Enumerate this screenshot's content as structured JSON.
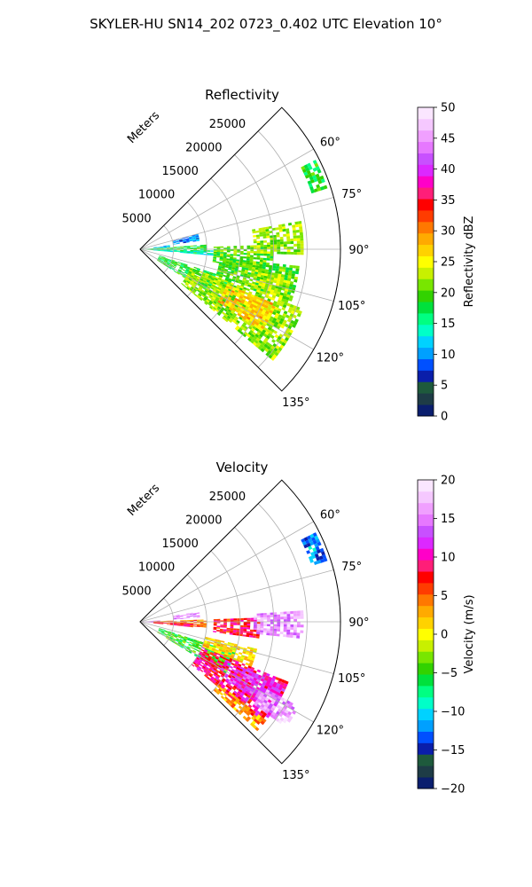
{
  "figure_title": "SKYLER-HU  SN14_202  0723_0.402 UTC Elevation 10°",
  "chart_data": [
    {
      "type": "heatmap",
      "projection": "polar-sector",
      "title": "Reflectivity",
      "radial_axis_label": "Meters",
      "radial_ticks": [
        5000,
        10000,
        15000,
        20000,
        25000
      ],
      "radial_tick_labels": [
        "5000",
        "10000",
        "15000",
        "20000",
        "25000"
      ],
      "rlim": [
        0,
        30000
      ],
      "theta_range_deg": [
        45,
        135
      ],
      "theta_zero": "north",
      "theta_direction": "clockwise",
      "theta_tick_labels": [
        "60°",
        "75°",
        "90°",
        "105°",
        "120°",
        "135°"
      ],
      "theta_ticks_deg": [
        60,
        75,
        90,
        105,
        120,
        135
      ],
      "grid": true,
      "colorbar": {
        "label": "Reflectivity dBZ",
        "min": 0,
        "max": 50,
        "ticks": [
          0,
          5,
          10,
          15,
          20,
          25,
          30,
          35,
          40,
          45,
          50
        ],
        "tick_labels": [
          "0",
          "5",
          "10",
          "15",
          "20",
          "25",
          "30",
          "35",
          "40",
          "45",
          "50"
        ],
        "colors": [
          "#0a1e6e",
          "#1e3c46",
          "#1e5a3c",
          "#0a1eaa",
          "#0050ff",
          "#00a0ff",
          "#00d2ff",
          "#00ffc8",
          "#00ff82",
          "#00e13c",
          "#32d200",
          "#78e600",
          "#c8f000",
          "#ffff00",
          "#ffd200",
          "#ffaa00",
          "#ff7800",
          "#ff3c00",
          "#ff0000",
          "#ff1e78",
          "#ff00c8",
          "#dc28ff",
          "#c850ff",
          "#e678ff",
          "#f0a0ff",
          "#f5c8ff",
          "#fae6ff"
        ]
      },
      "regions": [
        {
          "az": [
            86,
            94
          ],
          "r": [
            0,
            10000
          ],
          "value": 18
        },
        {
          "az": [
            82,
            87
          ],
          "r": [
            2000,
            4500
          ],
          "value": 12
        },
        {
          "az": [
            91,
            95
          ],
          "r": [
            2000,
            11000
          ],
          "value": 14
        },
        {
          "az": [
            75,
            82
          ],
          "r": [
            5000,
            9000
          ],
          "value": 10
        },
        {
          "az": [
            88,
            100
          ],
          "r": [
            11000,
            20000
          ],
          "value": 20
        },
        {
          "az": [
            80,
            92
          ],
          "r": [
            17000,
            24500
          ],
          "value": 22
        },
        {
          "az": [
            108,
            123
          ],
          "r": [
            3000,
            15000
          ],
          "value": 18
        },
        {
          "az": [
            110,
            130
          ],
          "r": [
            8000,
            26000
          ],
          "value": 22
        },
        {
          "az": [
            112,
            124
          ],
          "r": [
            14000,
            22000
          ],
          "value": 27
        },
        {
          "az": [
            96,
            110
          ],
          "r": [
            12000,
            24000
          ],
          "value": 20
        },
        {
          "az": [
            100,
            110
          ],
          "r": [
            17000,
            23000
          ],
          "value": 23
        },
        {
          "az": [
            63,
            72
          ],
          "r": [
            27000,
            29500
          ],
          "value": 18
        }
      ]
    },
    {
      "type": "heatmap",
      "projection": "polar-sector",
      "title": "Velocity",
      "radial_axis_label": "Meters",
      "radial_ticks": [
        5000,
        10000,
        15000,
        20000,
        25000
      ],
      "radial_tick_labels": [
        "5000",
        "10000",
        "15000",
        "20000",
        "25000"
      ],
      "rlim": [
        0,
        30000
      ],
      "theta_range_deg": [
        45,
        135
      ],
      "theta_zero": "north",
      "theta_direction": "clockwise",
      "theta_tick_labels": [
        "60°",
        "75°",
        "90°",
        "105°",
        "120°",
        "135°"
      ],
      "theta_ticks_deg": [
        60,
        75,
        90,
        105,
        120,
        135
      ],
      "grid": true,
      "colorbar": {
        "label": "Velocity (m/s)",
        "min": -20,
        "max": 20,
        "ticks": [
          -20,
          -15,
          -10,
          -5,
          0,
          5,
          10,
          15,
          20
        ],
        "tick_labels": [
          "−20",
          "−15",
          "−10",
          "−5",
          "0",
          "5",
          "10",
          "15",
          "20"
        ],
        "colors": [
          "#0a1e6e",
          "#1e3c46",
          "#1e5a3c",
          "#0a1eaa",
          "#0050ff",
          "#00a0ff",
          "#00d2ff",
          "#00ffc8",
          "#00ff82",
          "#00e13c",
          "#32d200",
          "#78e600",
          "#c8f000",
          "#ffff00",
          "#ffd200",
          "#ffaa00",
          "#ff7800",
          "#ff3c00",
          "#ff0000",
          "#ff1e78",
          "#ff00c8",
          "#dc28ff",
          "#c850ff",
          "#e678ff",
          "#f0a0ff",
          "#f5c8ff",
          "#fae6ff"
        ]
      },
      "regions": [
        {
          "az": [
            86,
            94
          ],
          "r": [
            0,
            3000
          ],
          "value": 14
        },
        {
          "az": [
            88,
            95
          ],
          "r": [
            2000,
            10000
          ],
          "value": 5
        },
        {
          "az": [
            92,
            96
          ],
          "r": [
            2000,
            8000
          ],
          "value": 8
        },
        {
          "az": [
            80,
            86
          ],
          "r": [
            5000,
            9000
          ],
          "value": 15
        },
        {
          "az": [
            88,
            98
          ],
          "r": [
            11000,
            18000
          ],
          "value": 8
        },
        {
          "az": [
            86,
            96
          ],
          "r": [
            17000,
            24500
          ],
          "value": 16
        },
        {
          "az": [
            108,
            122
          ],
          "r": [
            3000,
            15000
          ],
          "value": -5
        },
        {
          "az": [
            103,
            112
          ],
          "r": [
            10000,
            18000
          ],
          "value": 1
        },
        {
          "az": [
            112,
            130
          ],
          "r": [
            10000,
            24000
          ],
          "value": 9
        },
        {
          "az": [
            114,
            124
          ],
          "r": [
            16000,
            24000
          ],
          "value": 12
        },
        {
          "az": [
            118,
            126
          ],
          "r": [
            21000,
            27000
          ],
          "value": 16
        },
        {
          "az": [
            128,
            133
          ],
          "r": [
            15000,
            24000
          ],
          "value": 3
        },
        {
          "az": [
            63,
            72
          ],
          "r": [
            27000,
            29500
          ],
          "value": -12
        }
      ]
    }
  ]
}
